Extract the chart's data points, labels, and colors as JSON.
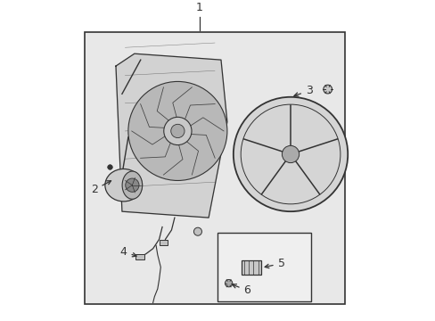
{
  "figsize": [
    4.89,
    3.6
  ],
  "dpi": 100,
  "background_color": "#ffffff",
  "box_bg": "#e8e8e8",
  "line_color": "#333333"
}
